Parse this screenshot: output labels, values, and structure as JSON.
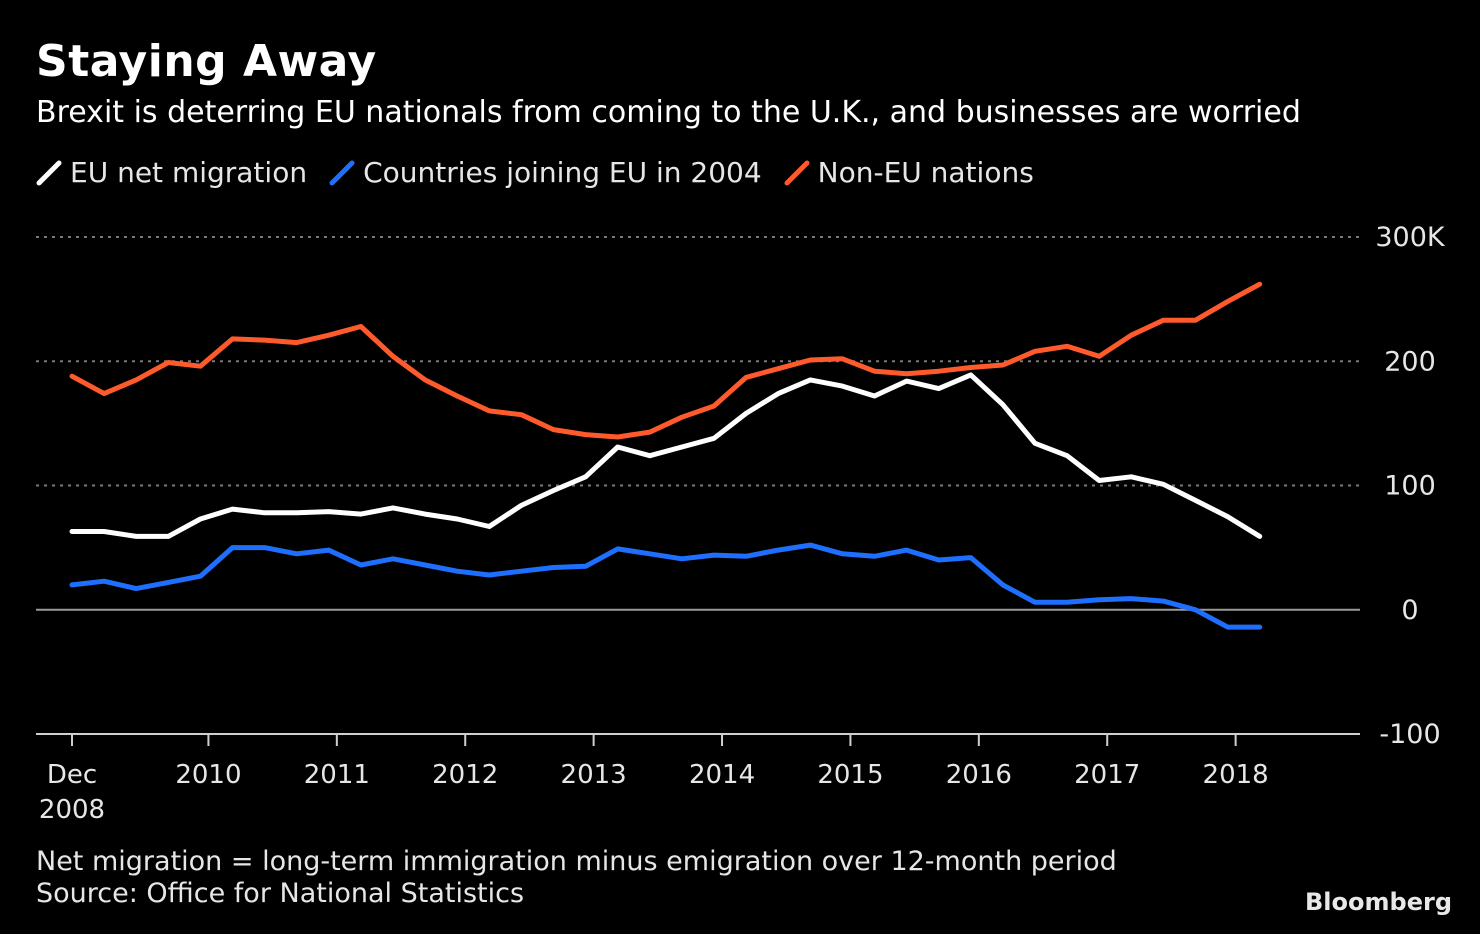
{
  "header": {
    "title": "Staying Away",
    "subtitle": "Brexit is deterring EU nationals from coming to the U.K., and businesses are worried"
  },
  "colors": {
    "background": "#000000",
    "eu": "#ffffff",
    "a8": "#1f6fff",
    "noneu": "#ff5a2b",
    "grid": "#7a7a7a",
    "axis": "#cfcfcf"
  },
  "footer": {
    "note": "Net migration = long-term immigration minus emigration over 12-month period",
    "source": "Source: Office for National Statistics",
    "brand": "Bloomberg"
  },
  "chart_data": {
    "type": "line",
    "x_start": "Dec 2008",
    "x_step": "quarter",
    "ylim": [
      -100,
      300
    ],
    "yticks": [
      {
        "value": 300,
        "label": "300K"
      },
      {
        "value": 200,
        "label": "200"
      },
      {
        "value": 100,
        "label": "100"
      },
      {
        "value": 0,
        "label": "0"
      },
      {
        "value": -100,
        "label": "-100"
      }
    ],
    "xticks": [
      {
        "x": 0,
        "label": [
          "Dec",
          "2008"
        ]
      },
      {
        "x": 4.25,
        "label": [
          "2010"
        ]
      },
      {
        "x": 8.25,
        "label": [
          "2011"
        ]
      },
      {
        "x": 12.25,
        "label": [
          "2012"
        ]
      },
      {
        "x": 16.25,
        "label": [
          "2013"
        ]
      },
      {
        "x": 20.25,
        "label": [
          "2014"
        ]
      },
      {
        "x": 24.25,
        "label": [
          "2015"
        ]
      },
      {
        "x": 28.25,
        "label": [
          "2016"
        ]
      },
      {
        "x": 32.25,
        "label": [
          "2017"
        ]
      },
      {
        "x": 36.25,
        "label": [
          "2018"
        ]
      }
    ],
    "grid": true,
    "legend_position": "top-left",
    "series": [
      {
        "name": "EU net migration",
        "color": "#ffffff",
        "values": [
          63,
          63,
          59,
          59,
          73,
          81,
          78,
          78,
          79,
          77,
          82,
          77,
          73,
          67,
          84,
          96,
          107,
          131,
          124,
          131,
          138,
          158,
          174,
          185,
          180,
          172,
          184,
          178,
          189,
          165,
          134,
          124,
          104,
          107,
          101,
          88,
          75,
          59
        ]
      },
      {
        "name": "Countries joining EU in 2004",
        "color": "#1f6fff",
        "values": [
          20,
          23,
          17,
          22,
          27,
          50,
          50,
          45,
          48,
          36,
          41,
          36,
          31,
          28,
          31,
          34,
          35,
          49,
          45,
          41,
          44,
          43,
          48,
          52,
          45,
          43,
          48,
          40,
          42,
          20,
          6,
          6,
          8,
          9,
          7,
          0,
          -14,
          -14
        ]
      },
      {
        "name": "Non-EU nations",
        "color": "#ff5a2b",
        "values": [
          188,
          174,
          185,
          199,
          196,
          218,
          217,
          215,
          221,
          228,
          204,
          185,
          172,
          160,
          157,
          145,
          141,
          139,
          143,
          155,
          164,
          187,
          194,
          201,
          202,
          192,
          190,
          192,
          195,
          197,
          208,
          212,
          204,
          221,
          233,
          233,
          248,
          262
        ]
      }
    ]
  }
}
